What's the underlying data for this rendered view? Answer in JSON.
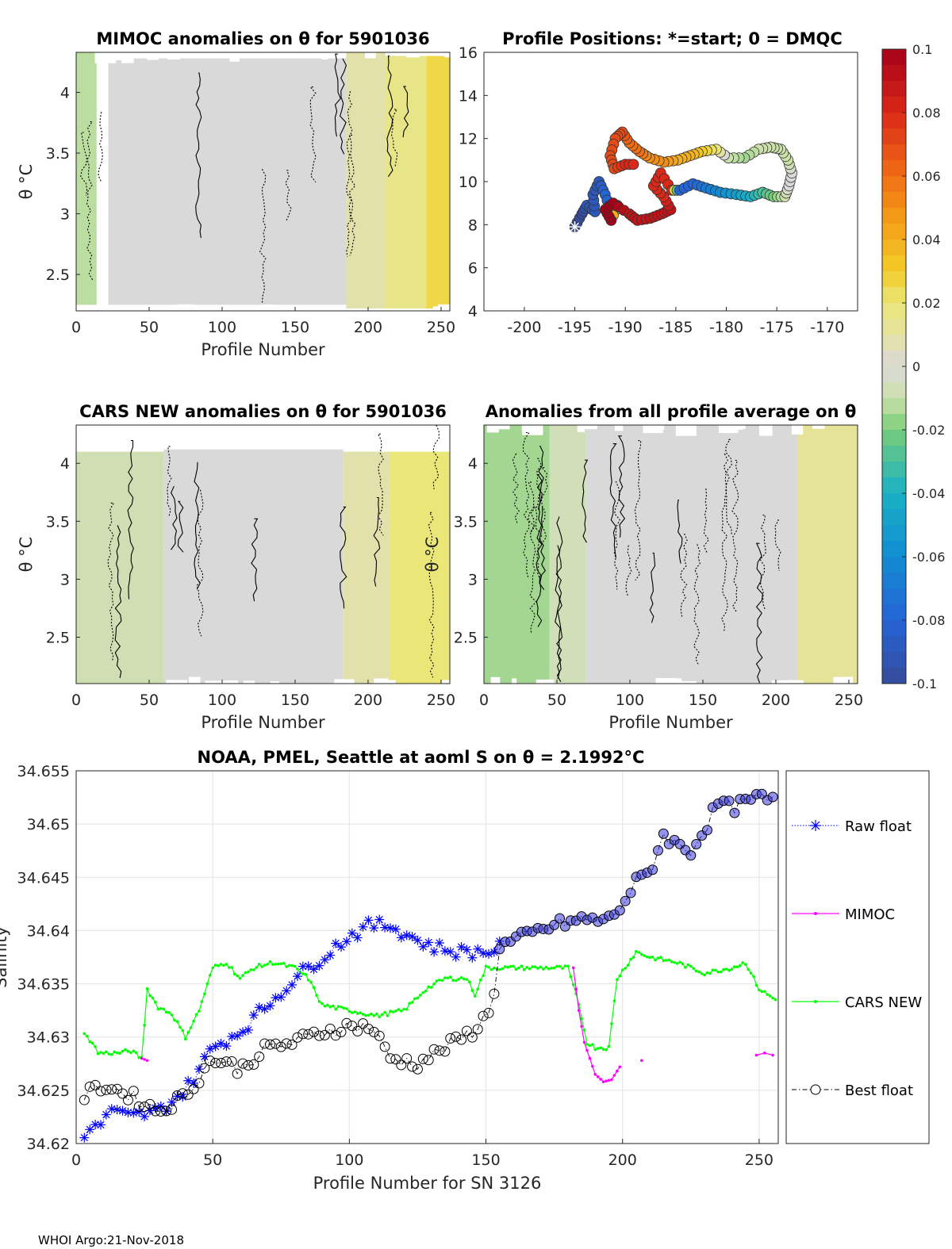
{
  "chart_data": [
    {
      "type": "heatmap",
      "title": "MIMOC anomalies on θ  for 5901036",
      "xlabel": "Profile Number",
      "ylabel": "θ °C",
      "xlim": [
        0,
        256
      ],
      "ylim": [
        2.2,
        4.33
      ],
      "xticks": [
        "0",
        "50",
        "100",
        "150",
        "200",
        "250"
      ],
      "yticks": [
        "2.5",
        "3",
        "3.5",
        "4"
      ],
      "columns": [
        {
          "x0": 0,
          "x1": 14,
          "anomaly": -0.012,
          "top": 4.33,
          "bottom": 2.25
        },
        {
          "x0": 22,
          "x1": 185,
          "anomaly": 0.0,
          "top": 4.28,
          "bottom": 2.25
        },
        {
          "x0": 185,
          "x1": 212,
          "anomaly": 0.008,
          "top": 4.33,
          "bottom": 2.22
        },
        {
          "x0": 212,
          "x1": 240,
          "anomaly": 0.016,
          "top": 4.3,
          "bottom": 2.22
        },
        {
          "x0": 240,
          "x1": 256,
          "anomaly": 0.026,
          "top": 4.3,
          "bottom": 2.22
        }
      ],
      "gaps": [
        {
          "x0": 14,
          "x1": 22
        }
      ]
    },
    {
      "type": "scatter",
      "title": "Profile Positions: *=start; 0 = DMQC",
      "xlim": [
        -204,
        -167
      ],
      "ylim": [
        4,
        16
      ],
      "xticks": [
        "-200",
        "-195",
        "-190",
        "-185",
        "-180",
        "-175",
        "-170"
      ],
      "yticks": [
        "4",
        "6",
        "8",
        "10",
        "12",
        "14",
        "16"
      ],
      "track": [
        [
          -195,
          7.9,
          -0.1
        ],
        [
          -194.3,
          8.5,
          -0.1
        ],
        [
          -193.8,
          8.9,
          -0.09
        ],
        [
          -193,
          8.6,
          -0.09
        ],
        [
          -193.2,
          9.4,
          -0.09
        ],
        [
          -192.6,
          10.0,
          -0.09
        ],
        [
          -192.0,
          9.4,
          -0.08
        ],
        [
          -191.4,
          8.6,
          -0.08
        ],
        [
          -190.8,
          8.9,
          -0.08
        ],
        [
          -191.4,
          8.2,
          0.1
        ],
        [
          -192.0,
          8.7,
          0.1
        ],
        [
          -191.2,
          9.0,
          0.1
        ],
        [
          -189.6,
          8.5,
          0.09
        ],
        [
          -188.8,
          8.2,
          0.09
        ],
        [
          -187.5,
          8.3,
          0.09
        ],
        [
          -186.4,
          8.5,
          0.09
        ],
        [
          -185.5,
          8.7,
          0.09
        ],
        [
          -186.2,
          9.3,
          0.08
        ],
        [
          -187.2,
          9.8,
          0.08
        ],
        [
          -186.5,
          10.4,
          0.08
        ],
        [
          -185.4,
          9.6,
          0.08
        ],
        [
          -184.6,
          9.6,
          -0.08
        ],
        [
          -183.3,
          9.9,
          -0.08
        ],
        [
          -182.0,
          9.7,
          -0.07
        ],
        [
          -180.6,
          9.5,
          -0.06
        ],
        [
          -179.0,
          9.4,
          -0.05
        ],
        [
          -177.6,
          9.3,
          -0.04
        ],
        [
          -176.4,
          9.5,
          -0.03
        ],
        [
          -175.3,
          9.3,
          -0.02
        ],
        [
          -174.2,
          9.3,
          -0.01
        ],
        [
          -173.8,
          9.8,
          0.0
        ],
        [
          -173.5,
          10.4,
          0.0
        ],
        [
          -173.9,
          11.0,
          -0.01
        ],
        [
          -174.6,
          11.5,
          -0.01
        ],
        [
          -175.6,
          11.6,
          -0.01
        ],
        [
          -176.8,
          11.5,
          -0.01
        ],
        [
          -178.2,
          11.1,
          -0.015
        ],
        [
          -179.8,
          11.1,
          -0.01
        ],
        [
          -181.0,
          11.5,
          0.02
        ],
        [
          -182.4,
          11.4,
          0.03
        ],
        [
          -183.6,
          11.2,
          0.04
        ],
        [
          -184.8,
          11.0,
          0.04
        ],
        [
          -186.2,
          10.9,
          0.05
        ],
        [
          -187.6,
          11.1,
          0.05
        ],
        [
          -188.6,
          11.4,
          0.06
        ],
        [
          -189.6,
          11.8,
          0.06
        ],
        [
          -190.3,
          12.3,
          0.07
        ],
        [
          -191.0,
          12.0,
          0.07
        ],
        [
          -191.5,
          11.2,
          0.07
        ],
        [
          -191.1,
          10.6,
          0.07
        ],
        [
          -190.0,
          10.8,
          0.08
        ],
        [
          -188.8,
          10.8,
          0.08
        ]
      ]
    },
    {
      "type": "heatmap",
      "title": "CARS NEW anomalies on θ for 5901036",
      "xlabel": "Profile Number",
      "ylabel": "θ °C",
      "xlim": [
        0,
        256
      ],
      "ylim": [
        2.1,
        4.33
      ],
      "xticks": [
        "0",
        "50",
        "100",
        "150",
        "200",
        "250"
      ],
      "yticks": [
        "2.5",
        "3",
        "3.5",
        "4"
      ],
      "columns": [
        {
          "x0": 0,
          "x1": 60,
          "anomaly": -0.008,
          "top": 4.1,
          "bottom": 2.1
        },
        {
          "x0": 60,
          "x1": 183,
          "anomaly": 0.0,
          "top": 4.12,
          "bottom": 2.1
        },
        {
          "x0": 183,
          "x1": 215,
          "anomaly": 0.008,
          "top": 4.1,
          "bottom": 2.1
        },
        {
          "x0": 215,
          "x1": 256,
          "anomaly": 0.02,
          "top": 4.1,
          "bottom": 2.1
        }
      ]
    },
    {
      "type": "heatmap",
      "title": "Anomalies from all profile average on θ",
      "xlabel": "Profile Number",
      "ylabel": "θ °C",
      "xlim": [
        0,
        256
      ],
      "ylim": [
        2.1,
        4.33
      ],
      "xticks": [
        "0",
        "50",
        "100",
        "150",
        "200",
        "250"
      ],
      "yticks": [
        "2.5",
        "3",
        "3.5",
        "4"
      ],
      "columns": [
        {
          "x0": 0,
          "x1": 45,
          "anomaly": -0.015,
          "top": 4.33,
          "bottom": 2.1
        },
        {
          "x0": 45,
          "x1": 70,
          "anomaly": -0.007,
          "top": 4.33,
          "bottom": 2.1
        },
        {
          "x0": 70,
          "x1": 215,
          "anomaly": 0.0,
          "top": 4.33,
          "bottom": 2.1
        },
        {
          "x0": 215,
          "x1": 256,
          "anomaly": 0.012,
          "top": 4.33,
          "bottom": 2.1
        }
      ]
    },
    {
      "type": "line",
      "title": "NOAA, PMEL, Seattle at aoml S on θ = 2.1992°C",
      "xlabel": "Profile Number for SN 3126",
      "ylabel": "Salinity",
      "xlim": [
        0,
        257
      ],
      "ylim": [
        34.62,
        34.655
      ],
      "xticks": [
        "0",
        "50",
        "100",
        "150",
        "200",
        "250"
      ],
      "yticks": [
        "34.62",
        "34.625",
        "34.63",
        "34.635",
        "34.64",
        "34.645",
        "34.65",
        "34.655"
      ],
      "legend": [
        "Raw float",
        "MIMOC",
        "CARS NEW",
        "Best float"
      ],
      "series_colors": {
        "raw": "#0000ff",
        "mimoc": "#ff00ff",
        "cars": "#00ff00",
        "best": "#000000"
      },
      "raw_anchors": [
        [
          3,
          34.621
        ],
        [
          8,
          34.6215
        ],
        [
          12,
          34.623
        ],
        [
          20,
          34.6225
        ],
        [
          30,
          34.623
        ],
        [
          40,
          34.625
        ],
        [
          50,
          34.629
        ],
        [
          60,
          34.6305
        ],
        [
          70,
          34.633
        ],
        [
          80,
          34.6355
        ],
        [
          90,
          34.6375
        ],
        [
          100,
          34.6395
        ],
        [
          108,
          34.6405
        ],
        [
          115,
          34.6405
        ],
        [
          122,
          34.6395
        ],
        [
          130,
          34.6385
        ],
        [
          140,
          34.638
        ],
        [
          150,
          34.638
        ],
        [
          156,
          34.6385
        ]
      ],
      "best_anchors": [
        [
          3,
          34.6245
        ],
        [
          10,
          34.6255
        ],
        [
          20,
          34.6245
        ],
        [
          30,
          34.623
        ],
        [
          40,
          34.6245
        ],
        [
          50,
          34.628
        ],
        [
          60,
          34.627
        ],
        [
          70,
          34.629
        ],
        [
          80,
          34.6295
        ],
        [
          90,
          34.6305
        ],
        [
          100,
          34.631
        ],
        [
          108,
          34.631
        ],
        [
          115,
          34.628
        ],
        [
          125,
          34.6275
        ],
        [
          135,
          34.629
        ],
        [
          145,
          34.6305
        ],
        [
          152,
          34.6325
        ],
        [
          155,
          34.6385
        ],
        [
          165,
          34.6395
        ],
        [
          175,
          34.6405
        ],
        [
          185,
          34.641
        ],
        [
          195,
          34.641
        ],
        [
          200,
          34.6425
        ],
        [
          205,
          34.6445
        ],
        [
          210,
          34.6455
        ],
        [
          215,
          34.649
        ],
        [
          220,
          34.648
        ],
        [
          225,
          34.6475
        ],
        [
          230,
          34.6495
        ],
        [
          235,
          34.652
        ],
        [
          240,
          34.6515
        ],
        [
          245,
          34.652
        ],
        [
          250,
          34.6525
        ],
        [
          256,
          34.652
        ]
      ],
      "cars_anchors": [
        [
          3,
          34.6302
        ],
        [
          6,
          34.6295
        ],
        [
          8,
          34.6285
        ],
        [
          15,
          34.6285
        ],
        [
          20,
          34.6287
        ],
        [
          24,
          34.628
        ],
        [
          26,
          34.6345
        ],
        [
          30,
          34.6328
        ],
        [
          35,
          34.6322
        ],
        [
          40,
          34.63
        ],
        [
          45,
          34.6325
        ],
        [
          50,
          34.6365
        ],
        [
          55,
          34.637
        ],
        [
          60,
          34.6355
        ],
        [
          65,
          34.6365
        ],
        [
          72,
          34.637
        ],
        [
          80,
          34.6365
        ],
        [
          85,
          34.6355
        ],
        [
          90,
          34.633
        ],
        [
          100,
          34.6325
        ],
        [
          110,
          34.632
        ],
        [
          120,
          34.6325
        ],
        [
          128,
          34.6345
        ],
        [
          135,
          34.6355
        ],
        [
          143,
          34.6355
        ],
        [
          146,
          34.634
        ],
        [
          150,
          34.6365
        ],
        [
          160,
          34.6365
        ],
        [
          170,
          34.6365
        ],
        [
          180,
          34.6365
        ],
        [
          184,
          34.633
        ],
        [
          187,
          34.6295
        ],
        [
          190,
          34.629
        ],
        [
          195,
          34.629
        ],
        [
          198,
          34.6355
        ],
        [
          205,
          34.638
        ],
        [
          210,
          34.6375
        ],
        [
          220,
          34.637
        ],
        [
          230,
          34.636
        ],
        [
          240,
          34.6365
        ],
        [
          245,
          34.637
        ],
        [
          250,
          34.6345
        ],
        [
          256,
          34.6335
        ]
      ],
      "mimoc_anchors": [
        [
          24,
          34.628
        ],
        [
          26,
          34.6278
        ]
      ],
      "mimoc_segment": [
        [
          182,
          34.6365
        ],
        [
          184,
          34.6325
        ],
        [
          186,
          34.6295
        ],
        [
          188,
          34.628
        ],
        [
          190,
          34.6265
        ],
        [
          193,
          34.6258
        ],
        [
          196,
          34.626
        ],
        [
          199,
          34.6272
        ]
      ],
      "mimoc_tail": [
        [
          207,
          34.6278
        ],
        [
          249,
          34.6283
        ],
        [
          252,
          34.6285
        ],
        [
          255,
          34.6283
        ]
      ]
    }
  ],
  "colorbar": {
    "ticks": [
      "0.1",
      "0.08",
      "0.06",
      "0.04",
      "0.02",
      "0",
      "-0.02",
      "-0.04",
      "-0.06",
      "-0.08",
      "-0.1"
    ],
    "range": [
      -0.1,
      0.1
    ]
  },
  "footer": "WHOI Argo:21-Nov-2018"
}
